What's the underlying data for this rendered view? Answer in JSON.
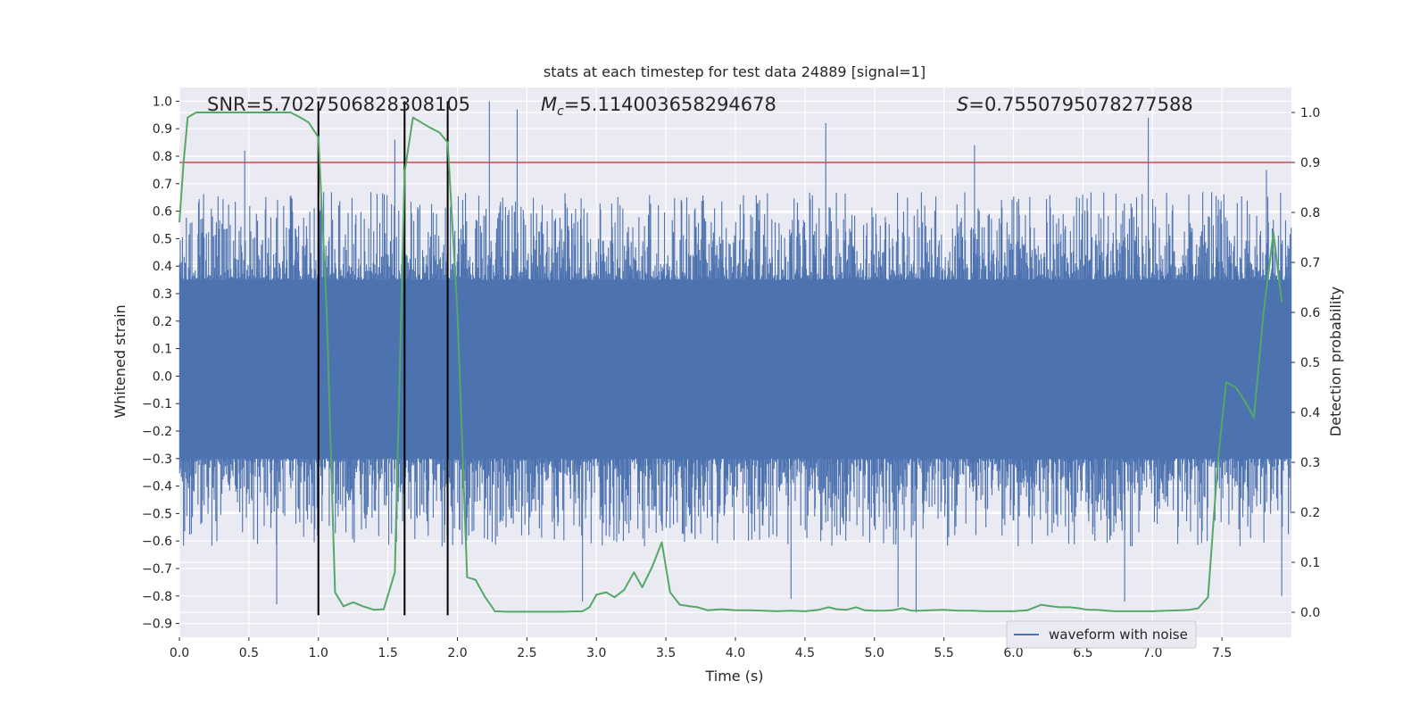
{
  "chart_data": {
    "type": "line",
    "title": "stats at each timestep for test data 24889 [signal=1]",
    "xlabel": "Time (s)",
    "ylabel_left": "Whitened strain",
    "ylabel_right": "Detection probability",
    "xlim": [
      0.0,
      8.0
    ],
    "ylim_left": [
      -0.95,
      1.05
    ],
    "ylim_right": [
      -0.05,
      1.05
    ],
    "x_ticks": [
      0.0,
      0.5,
      1.0,
      1.5,
      2.0,
      2.5,
      3.0,
      3.5,
      4.0,
      4.5,
      5.0,
      5.5,
      6.0,
      6.5,
      7.0,
      7.5
    ],
    "x_tick_labels": [
      "0.0",
      "0.5",
      "1.0",
      "1.5",
      "2.0",
      "2.5",
      "3.0",
      "3.5",
      "4.0",
      "4.5",
      "5.0",
      "5.5",
      "6.0",
      "6.5",
      "7.0",
      "7.5"
    ],
    "y_left_ticks": [
      -0.9,
      -0.8,
      -0.7,
      -0.6,
      -0.5,
      -0.4,
      -0.3,
      -0.2,
      -0.1,
      0.0,
      0.1,
      0.2,
      0.3,
      0.4,
      0.5,
      0.6,
      0.7,
      0.8,
      0.9,
      1.0
    ],
    "y_left_tick_labels": [
      "−0.9",
      "−0.8",
      "−0.7",
      "−0.6",
      "−0.5",
      "−0.4",
      "−0.3",
      "−0.2",
      "−0.1",
      "0.0",
      "0.1",
      "0.2",
      "0.3",
      "0.4",
      "0.5",
      "0.6",
      "0.7",
      "0.8",
      "0.9",
      "1.0"
    ],
    "y_right_ticks": [
      0.0,
      0.1,
      0.2,
      0.3,
      0.4,
      0.5,
      0.6,
      0.7,
      0.8,
      0.9,
      1.0
    ],
    "y_right_tick_labels": [
      "0.0",
      "0.1",
      "0.2",
      "0.3",
      "0.4",
      "0.5",
      "0.6",
      "0.7",
      "0.8",
      "0.9",
      "1.0"
    ],
    "grid": true,
    "legend": {
      "entries": [
        {
          "name": "waveform with noise",
          "color": "#4c72b0"
        }
      ],
      "placement": "lower-right"
    },
    "annotations": {
      "snr": "SNR=5.7027506828308105",
      "mc_symbol": "M",
      "mc_sub": "c",
      "mc_value": "=5.114003658294678",
      "s_symbol": "S",
      "s_value": "=0.7550795078277588"
    },
    "threshold": {
      "axis": "right",
      "value": 0.9,
      "color": "#c44e52"
    },
    "vertical_markers": {
      "x": [
        1.0,
        1.62,
        1.93
      ],
      "y_range_left": [
        -0.87,
        1.0
      ],
      "color": "#000000"
    },
    "waveform": {
      "name": "waveform with noise",
      "axis": "left",
      "color": "#4c72b0",
      "sample_count": 2000,
      "band": [
        -0.3,
        0.35
      ],
      "spike_peaks_pos": [
        [
          0.47,
          0.82
        ],
        [
          1.0,
          0.72
        ],
        [
          1.55,
          0.86
        ],
        [
          2.23,
          1.0
        ],
        [
          2.43,
          0.97
        ],
        [
          4.65,
          0.92
        ],
        [
          5.72,
          0.84
        ],
        [
          6.97,
          0.94
        ],
        [
          7.82,
          0.75
        ]
      ],
      "spike_peaks_neg": [
        [
          0.7,
          -0.83
        ],
        [
          2.9,
          -0.82
        ],
        [
          3.43,
          -0.57
        ],
        [
          4.4,
          -0.81
        ],
        [
          5.17,
          -0.84
        ],
        [
          5.3,
          -0.86
        ],
        [
          6.8,
          -0.82
        ],
        [
          7.93,
          -0.8
        ]
      ]
    },
    "detection_probability": {
      "axis": "right",
      "color": "#55a868",
      "x": [
        0.0,
        0.03,
        0.06,
        0.12,
        0.2,
        0.3,
        0.4,
        0.5,
        0.6,
        0.7,
        0.8,
        0.87,
        0.93,
        1.0,
        1.06,
        1.12,
        1.18,
        1.25,
        1.32,
        1.4,
        1.47,
        1.55,
        1.62,
        1.68,
        1.74,
        1.8,
        1.87,
        1.93,
        2.0,
        2.07,
        2.13,
        2.2,
        2.27,
        2.35,
        2.45,
        2.6,
        2.75,
        2.9,
        2.95,
        3.0,
        3.07,
        3.13,
        3.2,
        3.27,
        3.33,
        3.4,
        3.47,
        3.53,
        3.6,
        3.67,
        3.73,
        3.8,
        3.9,
        4.0,
        4.1,
        4.2,
        4.3,
        4.4,
        4.5,
        4.6,
        4.67,
        4.73,
        4.8,
        4.87,
        4.93,
        5.0,
        5.07,
        5.13,
        5.2,
        5.27,
        5.33,
        5.4,
        5.5,
        5.6,
        5.7,
        5.8,
        5.9,
        6.0,
        6.1,
        6.2,
        6.27,
        6.33,
        6.4,
        6.47,
        6.53,
        6.6,
        6.67,
        6.73,
        6.8,
        6.9,
        7.0,
        7.1,
        7.2,
        7.27,
        7.33,
        7.4,
        7.47,
        7.53,
        7.6,
        7.67,
        7.73,
        7.8,
        7.87,
        7.93
      ],
      "y": [
        0.78,
        0.9,
        0.99,
        1.0,
        1.0,
        1.0,
        1.0,
        1.0,
        1.0,
        1.0,
        1.0,
        0.99,
        0.98,
        0.95,
        0.6,
        0.04,
        0.012,
        0.02,
        0.012,
        0.005,
        0.006,
        0.08,
        0.88,
        0.99,
        0.98,
        0.97,
        0.96,
        0.94,
        0.6,
        0.07,
        0.065,
        0.03,
        0.002,
        0.001,
        0.001,
        0.001,
        0.001,
        0.002,
        0.01,
        0.035,
        0.04,
        0.03,
        0.045,
        0.08,
        0.05,
        0.09,
        0.14,
        0.04,
        0.015,
        0.012,
        0.01,
        0.004,
        0.006,
        0.004,
        0.004,
        0.003,
        0.002,
        0.003,
        0.002,
        0.005,
        0.01,
        0.006,
        0.005,
        0.01,
        0.004,
        0.003,
        0.003,
        0.004,
        0.008,
        0.003,
        0.003,
        0.004,
        0.005,
        0.003,
        0.003,
        0.002,
        0.002,
        0.002,
        0.004,
        0.015,
        0.012,
        0.01,
        0.01,
        0.008,
        0.005,
        0.005,
        0.003,
        0.002,
        0.002,
        0.002,
        0.002,
        0.003,
        0.004,
        0.005,
        0.008,
        0.03,
        0.3,
        0.46,
        0.45,
        0.42,
        0.39,
        0.6,
        0.76,
        0.62
      ]
    }
  }
}
